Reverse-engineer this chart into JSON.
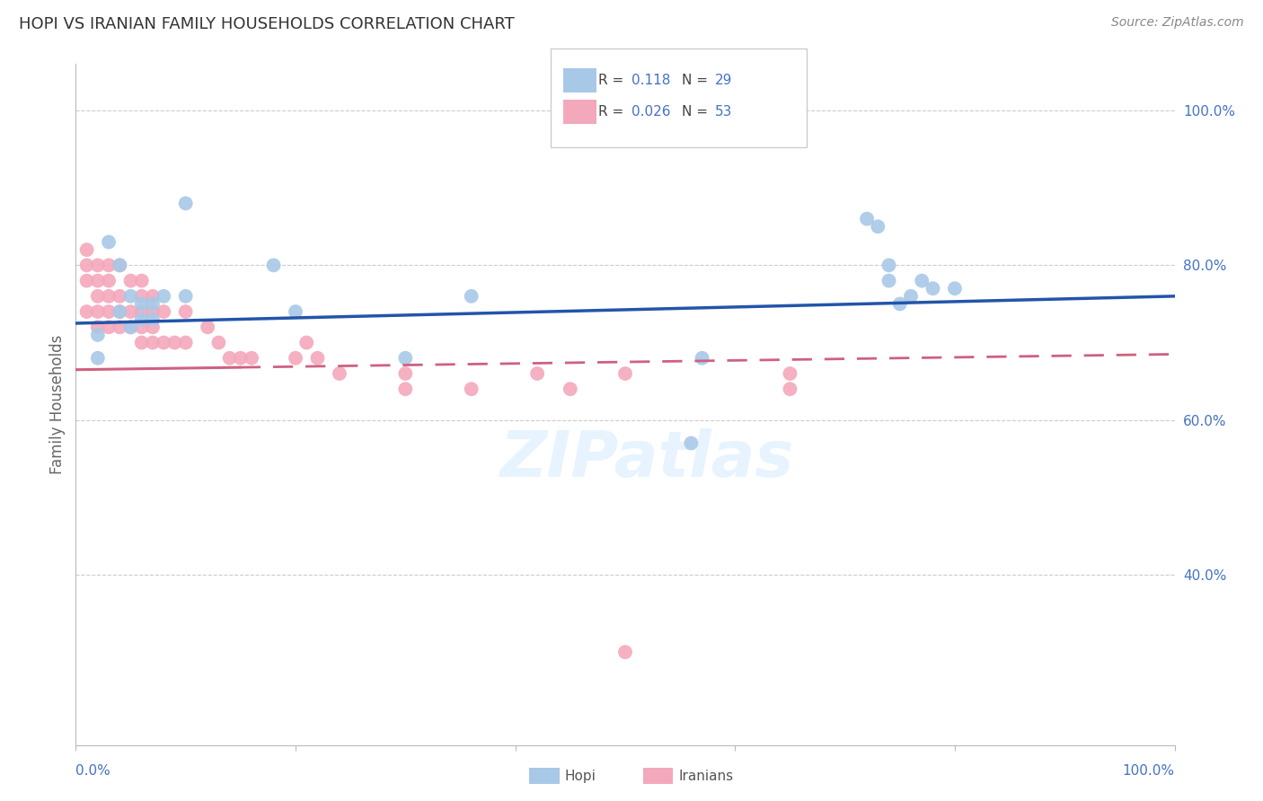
{
  "title": "HOPI VS IRANIAN FAMILY HOUSEHOLDS CORRELATION CHART",
  "source": "Source: ZipAtlas.com",
  "ylabel": "Family Households",
  "ylabel_right_ticks": [
    "40.0%",
    "60.0%",
    "80.0%",
    "100.0%"
  ],
  "ylabel_right_vals": [
    0.4,
    0.6,
    0.8,
    1.0
  ],
  "legend_hopi_R": "0.118",
  "legend_hopi_N": "29",
  "legend_iranian_R": "0.026",
  "legend_iranian_N": "53",
  "hopi_color": "#A8C8E8",
  "iranian_color": "#F4A8BC",
  "hopi_line_color": "#2255AA",
  "iranian_line_color": "#D06080",
  "background_color": "#FFFFFF",
  "watermark_text": "ZIPatlas",
  "hopi_x": [
    0.02,
    0.02,
    0.03,
    0.04,
    0.04,
    0.05,
    0.05,
    0.06,
    0.06,
    0.07,
    0.07,
    0.08,
    0.1,
    0.1,
    0.18,
    0.2,
    0.3,
    0.36,
    0.56,
    0.57,
    0.72,
    0.73,
    0.74,
    0.74,
    0.75,
    0.76,
    0.77,
    0.78,
    0.8
  ],
  "hopi_y": [
    0.68,
    0.71,
    0.83,
    0.74,
    0.8,
    0.72,
    0.76,
    0.73,
    0.75,
    0.73,
    0.75,
    0.76,
    0.88,
    0.76,
    0.8,
    0.74,
    0.68,
    0.76,
    0.57,
    0.68,
    0.86,
    0.85,
    0.78,
    0.8,
    0.75,
    0.76,
    0.78,
    0.77,
    0.77
  ],
  "iranian_x": [
    0.01,
    0.01,
    0.01,
    0.01,
    0.02,
    0.02,
    0.02,
    0.02,
    0.02,
    0.03,
    0.03,
    0.03,
    0.03,
    0.03,
    0.04,
    0.04,
    0.04,
    0.04,
    0.05,
    0.05,
    0.05,
    0.06,
    0.06,
    0.06,
    0.06,
    0.06,
    0.07,
    0.07,
    0.07,
    0.07,
    0.08,
    0.08,
    0.09,
    0.1,
    0.1,
    0.12,
    0.13,
    0.14,
    0.15,
    0.16,
    0.2,
    0.21,
    0.22,
    0.24,
    0.3,
    0.3,
    0.36,
    0.42,
    0.45,
    0.5,
    0.65,
    0.65,
    0.5
  ],
  "iranian_y": [
    0.74,
    0.78,
    0.8,
    0.82,
    0.72,
    0.74,
    0.76,
    0.78,
    0.8,
    0.72,
    0.74,
    0.76,
    0.78,
    0.8,
    0.72,
    0.74,
    0.76,
    0.8,
    0.72,
    0.74,
    0.78,
    0.7,
    0.72,
    0.74,
    0.76,
    0.78,
    0.7,
    0.72,
    0.74,
    0.76,
    0.7,
    0.74,
    0.7,
    0.7,
    0.74,
    0.72,
    0.7,
    0.68,
    0.68,
    0.68,
    0.68,
    0.7,
    0.68,
    0.66,
    0.64,
    0.66,
    0.64,
    0.66,
    0.64,
    0.66,
    0.64,
    0.66,
    0.3
  ],
  "xlim": [
    0.0,
    1.0
  ],
  "ylim": [
    0.18,
    1.06
  ],
  "grid_vals": [
    0.4,
    0.6,
    0.8,
    1.0
  ],
  "figsize": [
    14.06,
    8.92
  ],
  "dpi": 100
}
